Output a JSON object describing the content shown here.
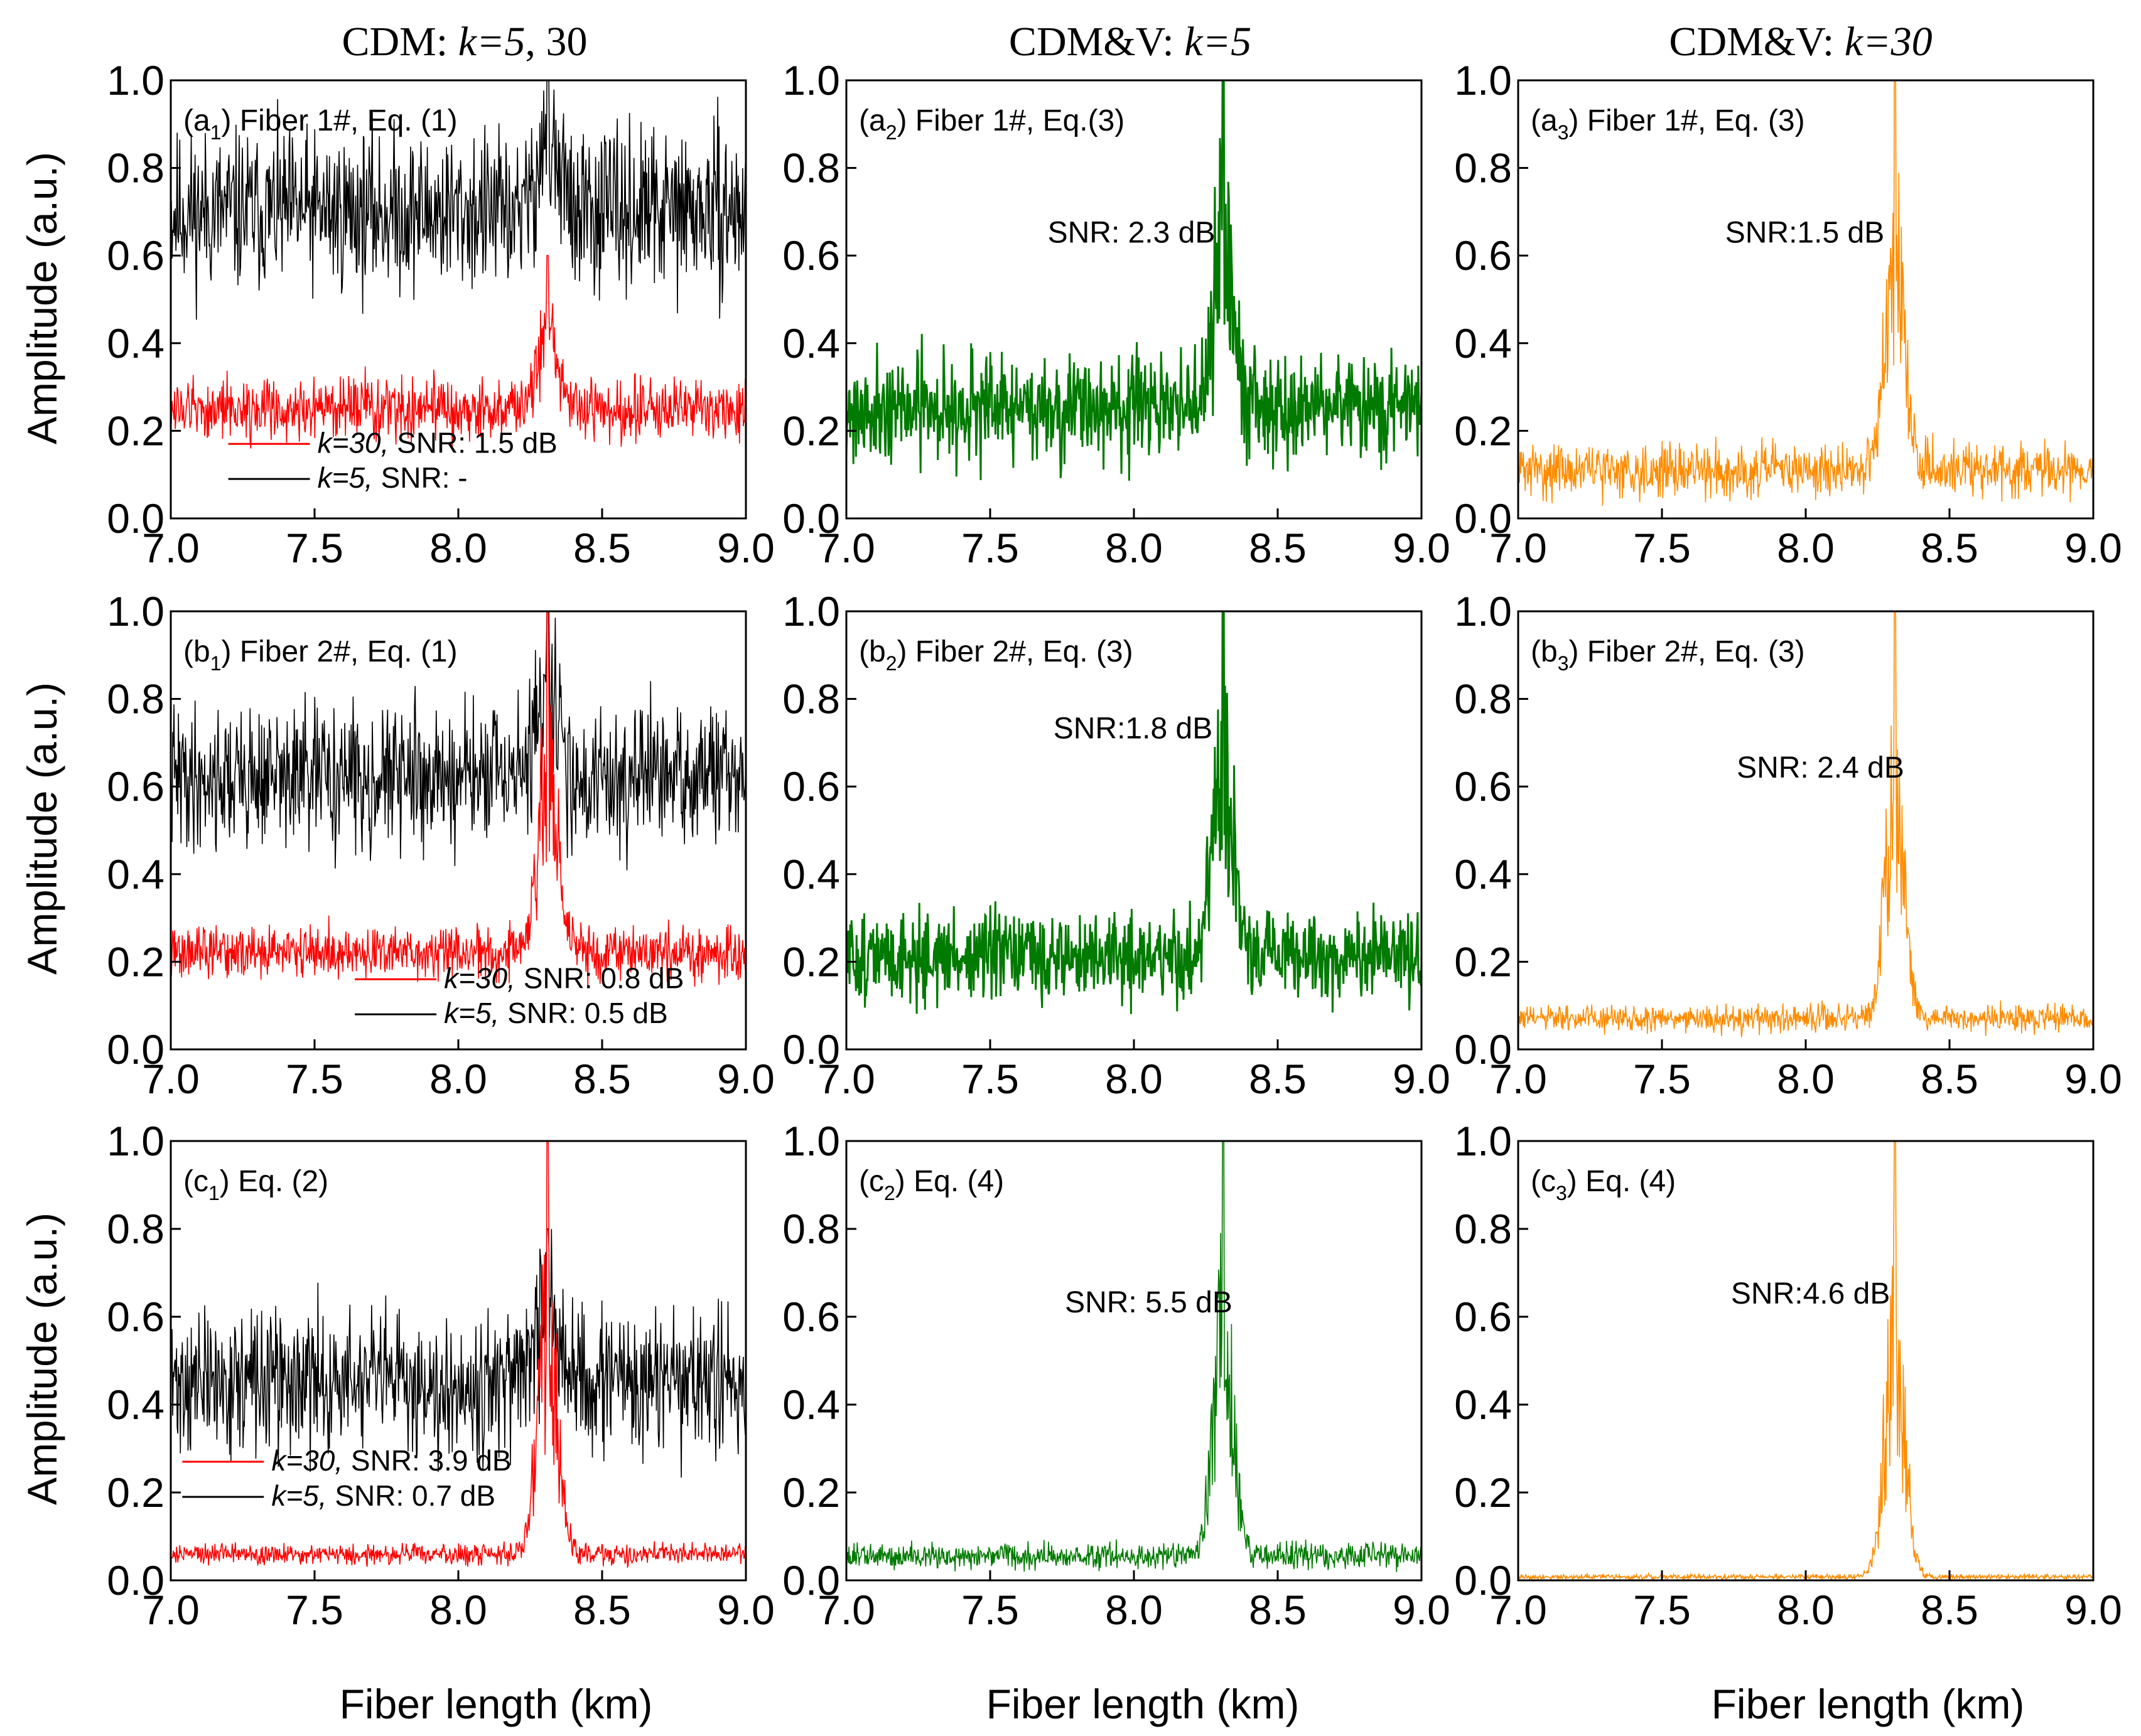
{
  "figure": {
    "column_titles": [
      {
        "prefix": "CDM: ",
        "k": "k=5",
        "suffix": ", 30"
      },
      {
        "prefix": "CDM&V: ",
        "k": "k=5",
        "suffix": ""
      },
      {
        "prefix": "CDM&V: ",
        "k": "k=30",
        "suffix": ""
      }
    ],
    "ylabel": "Amplitude (a.u.)",
    "xlabel": "Fiber length (km)",
    "x_ticks": [
      "7.0",
      "7.5",
      "8.0",
      "8.5",
      "9.0"
    ],
    "y_ticks": [
      "0.0",
      "0.2",
      "0.4",
      "0.6",
      "0.8",
      "1.0"
    ],
    "colors": {
      "black": "#000000",
      "red": "#ff0000",
      "green": "#007a00",
      "orange": "#ff8c00"
    }
  },
  "chart_data": [
    {
      "id": "a1",
      "type": "line",
      "label_letter": "a",
      "label_sub": "1",
      "label_text": " Fiber 1#, Eq. (1)",
      "xlim": [
        7.0,
        9.0
      ],
      "ylim": [
        0.0,
        1.0
      ],
      "peak_x": 8.31,
      "legend": [
        {
          "series": "k=30,",
          "text": " SNR: 1.5 dB",
          "color": "#ff0000"
        },
        {
          "series": "k=5,",
          "text": "   SNR: -",
          "color": "#000000"
        }
      ],
      "series": [
        {
          "name": "k=5",
          "color": "#000000",
          "baseline": 0.7,
          "noise": 0.09,
          "peak_height": 1.0,
          "seed": 11
        },
        {
          "name": "k=30",
          "color": "#ff0000",
          "baseline": 0.25,
          "noise": 0.035,
          "peak_height": 0.6,
          "seed": 12
        }
      ]
    },
    {
      "id": "a2",
      "type": "line",
      "label_letter": "a",
      "label_sub": "2",
      "label_text": " Fiber 1#, Eq.(3)",
      "xlim": [
        7.0,
        9.0
      ],
      "ylim": [
        0.0,
        1.0
      ],
      "peak_x": 8.31,
      "snr": "SNR: 2.3 dB",
      "series": [
        {
          "name": "CDM&V k=5",
          "color": "#007a00",
          "baseline": 0.25,
          "noise": 0.06,
          "peak_height": 1.0,
          "seed": 21
        }
      ]
    },
    {
      "id": "a3",
      "type": "line",
      "label_letter": "a",
      "label_sub": "3",
      "label_text": " Fiber 1#, Eq. (3)",
      "xlim": [
        7.0,
        9.0
      ],
      "ylim": [
        0.0,
        1.0
      ],
      "peak_x": 8.31,
      "snr": "SNR:1.5 dB",
      "series": [
        {
          "name": "CDM&V k=30",
          "color": "#ff8c00",
          "baseline": 0.11,
          "noise": 0.03,
          "peak_height": 1.0,
          "seed": 31
        }
      ]
    },
    {
      "id": "b1",
      "type": "line",
      "label_letter": "b",
      "label_sub": "1",
      "label_text": " Fiber 2#, Eq. (1)",
      "xlim": [
        7.0,
        9.0
      ],
      "ylim": [
        0.0,
        1.0
      ],
      "peak_x": 8.31,
      "legend": [
        {
          "series": "k=30,",
          "text": " SNR: 0.8 dB",
          "color": "#ff0000"
        },
        {
          "series": "k=5,",
          "text": "   SNR: 0.5 dB",
          "color": "#000000"
        }
      ],
      "series": [
        {
          "name": "k=5",
          "color": "#000000",
          "baseline": 0.62,
          "noise": 0.08,
          "peak_height": 1.0,
          "seed": 41
        },
        {
          "name": "k=30",
          "color": "#ff0000",
          "baseline": 0.22,
          "noise": 0.03,
          "peak_height": 1.0,
          "seed": 42
        }
      ]
    },
    {
      "id": "b2",
      "type": "line",
      "label_letter": "b",
      "label_sub": "2",
      "label_text": " Fiber 2#, Eq. (3)",
      "xlim": [
        7.0,
        9.0
      ],
      "ylim": [
        0.0,
        1.0
      ],
      "peak_x": 8.31,
      "snr": "SNR:1.8 dB",
      "series": [
        {
          "name": "CDM&V k=5",
          "color": "#007a00",
          "baseline": 0.21,
          "noise": 0.05,
          "peak_height": 1.0,
          "seed": 51
        }
      ]
    },
    {
      "id": "b3",
      "type": "line",
      "label_letter": "b",
      "label_sub": "3",
      "label_text": " Fiber 2#, Eq. (3)",
      "xlim": [
        7.0,
        9.0
      ],
      "ylim": [
        0.0,
        1.0
      ],
      "peak_x": 8.31,
      "snr": "SNR: 2.4 dB",
      "series": [
        {
          "name": "CDM&V k=30",
          "color": "#ff8c00",
          "baseline": 0.07,
          "noise": 0.015,
          "peak_height": 1.0,
          "seed": 61
        }
      ]
    },
    {
      "id": "c1",
      "type": "line",
      "label_letter": "c",
      "label_sub": "1",
      "label_text": " Eq. (2)",
      "xlim": [
        7.0,
        9.0
      ],
      "ylim": [
        0.0,
        1.0
      ],
      "peak_x": 8.31,
      "legend": [
        {
          "series": "k=30,",
          "text": " SNR: 3.9 dB",
          "color": "#ff0000"
        },
        {
          "series": "k=5,",
          "text": "   SNR: 0.7 dB",
          "color": "#000000"
        }
      ],
      "series": [
        {
          "name": "k=5",
          "color": "#000000",
          "baseline": 0.45,
          "noise": 0.08,
          "peak_height": 0.8,
          "seed": 71
        },
        {
          "name": "k=30",
          "color": "#ff0000",
          "baseline": 0.06,
          "noise": 0.012,
          "peak_height": 1.0,
          "seed": 72
        }
      ]
    },
    {
      "id": "c2",
      "type": "line",
      "label_letter": "c",
      "label_sub": "2",
      "label_text": " Eq. (4)",
      "xlim": [
        7.0,
        9.0
      ],
      "ylim": [
        0.0,
        1.0
      ],
      "peak_x": 8.31,
      "snr": "SNR: 5.5 dB",
      "series": [
        {
          "name": "CDM&V k=5",
          "color": "#007a00",
          "baseline": 0.055,
          "noise": 0.015,
          "peak_height": 1.0,
          "seed": 81
        }
      ]
    },
    {
      "id": "c3",
      "type": "line",
      "label_letter": "c",
      "label_sub": "3",
      "label_text": " Eq. (4)",
      "xlim": [
        7.0,
        9.0
      ],
      "ylim": [
        0.0,
        1.0
      ],
      "peak_x": 8.31,
      "snr": "SNR:4.6 dB",
      "series": [
        {
          "name": "CDM&V k=30",
          "color": "#ff8c00",
          "baseline": 0.008,
          "noise": 0.003,
          "peak_height": 1.0,
          "seed": 91
        }
      ]
    }
  ]
}
